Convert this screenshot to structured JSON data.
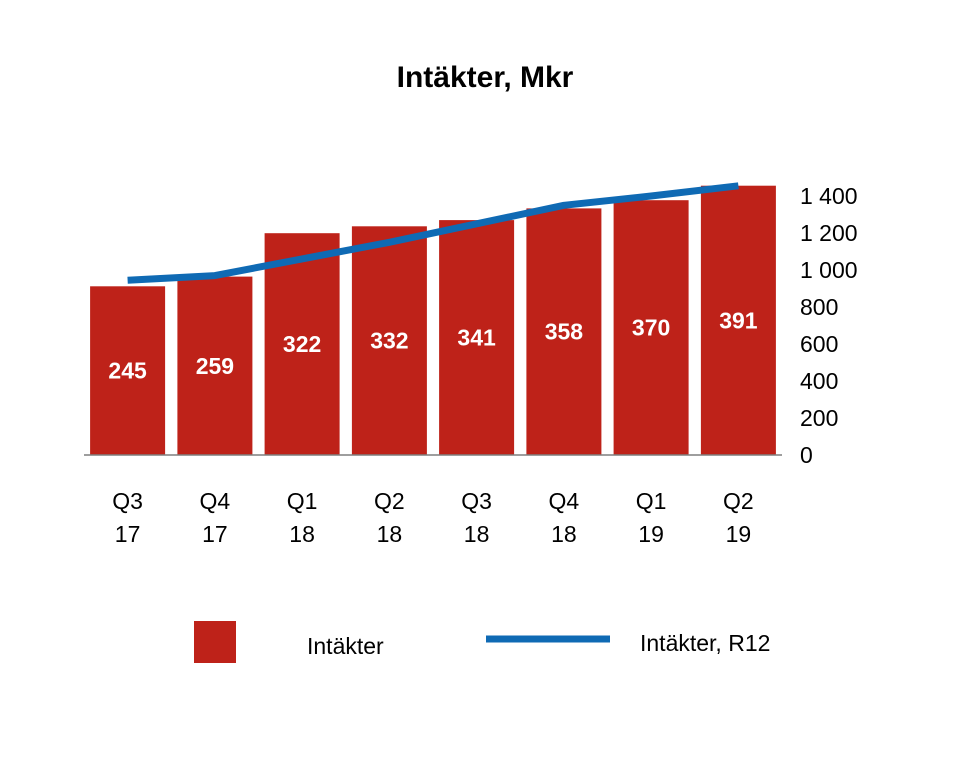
{
  "chart_data": {
    "type": "bar",
    "title": "Intäkter, Mkr",
    "categories": [
      [
        "Q3",
        "17"
      ],
      [
        "Q4",
        "17"
      ],
      [
        "Q1",
        "18"
      ],
      [
        "Q2",
        "18"
      ],
      [
        "Q3",
        "18"
      ],
      [
        "Q4",
        "18"
      ],
      [
        "Q1",
        "19"
      ],
      [
        "Q2",
        "19"
      ]
    ],
    "series": [
      {
        "name": "Intäkter",
        "kind": "bar",
        "axis": "primary",
        "color": "#BE2219",
        "values": [
          245,
          259,
          322,
          332,
          341,
          358,
          370,
          391
        ]
      },
      {
        "name": "Intäkter, R12",
        "kind": "line",
        "axis": "secondary",
        "color": "#0F6AB4",
        "values": [
          945,
          970,
          1060,
          1150,
          1250,
          1350,
          1400,
          1455
        ]
      }
    ],
    "primary_axis": {
      "ylim": [
        0,
        392
      ],
      "visible": false
    },
    "secondary_axis": {
      "position": "right",
      "ylim": [
        0,
        1400
      ],
      "ticks": [
        "0",
        "200",
        "400",
        "600",
        "800",
        "1 000",
        "1 200",
        "1 400"
      ],
      "tick_values": [
        0,
        200,
        400,
        600,
        800,
        1000,
        1200,
        1400
      ]
    },
    "legend": {
      "position": "bottom",
      "items": [
        {
          "label": "Intäkter",
          "marker": "square",
          "color": "#BE2219"
        },
        {
          "label": "Intäkter, R12",
          "marker": "line",
          "color": "#0F6AB4"
        }
      ]
    },
    "grid": false
  }
}
